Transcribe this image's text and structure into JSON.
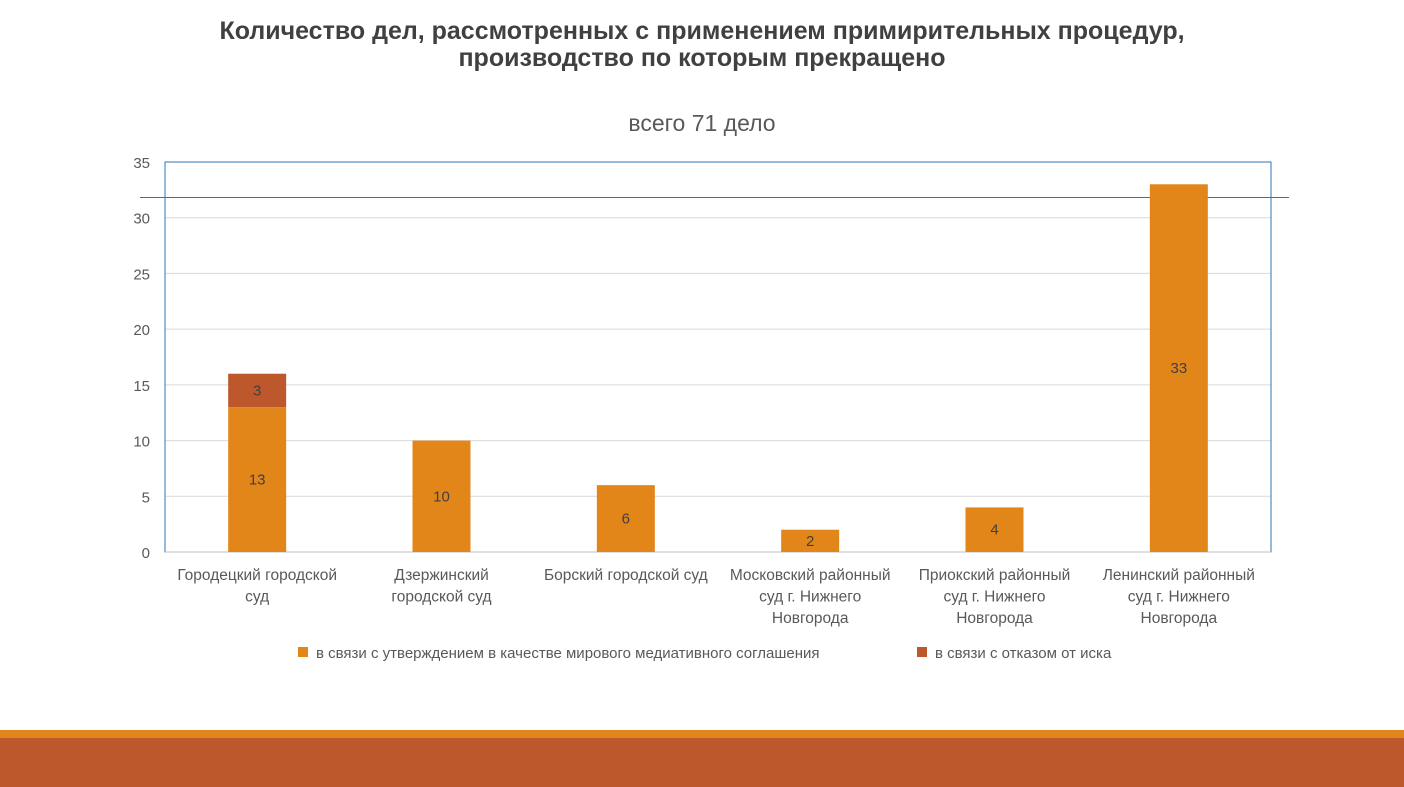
{
  "slide": {
    "title_line1": "Количество дел, рассмотренных с применением примирительных процедур,",
    "title_line2": "производство по которым прекращено",
    "colors": {
      "title": "#404040",
      "footer_thin": "#e3861a",
      "footer_thick": "#bd582c"
    }
  },
  "chart_data": {
    "type": "bar",
    "stacked": true,
    "title": "всего 71 дело",
    "xlabel": "",
    "ylabel": "",
    "ylim": [
      0,
      35
    ],
    "yticks": [
      0,
      5,
      10,
      15,
      20,
      25,
      30,
      35
    ],
    "grid": true,
    "legend_position": "bottom",
    "categories": [
      [
        "Городецкий городской",
        "суд"
      ],
      [
        "Дзержинский",
        "городской суд"
      ],
      [
        "Борский городской суд"
      ],
      [
        "Московский районный",
        "суд г. Нижнего",
        "Новгорода"
      ],
      [
        "Приокский районный",
        "суд г. Нижнего",
        "Новгорода"
      ],
      [
        "Ленинский районный",
        "суд г. Нижнего",
        "Новгорода"
      ]
    ],
    "series": [
      {
        "name": "в связи с утверждением в качестве мирового медиативного соглашения",
        "color": "#e3861a",
        "values": [
          13,
          10,
          6,
          2,
          4,
          33
        ]
      },
      {
        "name": "в связи с отказом от иска",
        "color": "#bd582c",
        "values": [
          3,
          null,
          null,
          null,
          null,
          null
        ]
      }
    ]
  }
}
